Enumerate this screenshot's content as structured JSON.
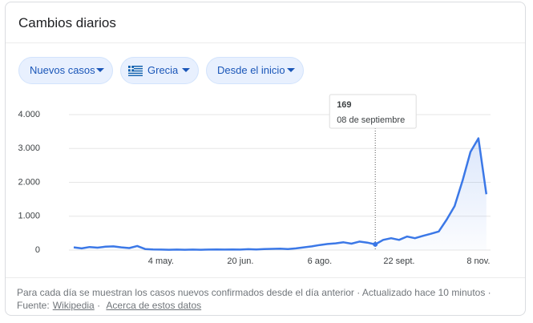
{
  "header": {
    "title": "Cambios diarios"
  },
  "filters": [
    "Nuevos casos",
    "Grecia",
    "Desde el inicio"
  ],
  "chart_data": {
    "type": "line",
    "categories": [
      null,
      null,
      null,
      null,
      null,
      null,
      null,
      null,
      null,
      null,
      null,
      "4 may.",
      null,
      null,
      null,
      null,
      null,
      null,
      null,
      null,
      null,
      "20 jun.",
      null,
      null,
      null,
      null,
      null,
      null,
      null,
      null,
      null,
      "6 ago.",
      null,
      null,
      null,
      null,
      null,
      null,
      null,
      null,
      null,
      "22 sept.",
      null,
      null,
      null,
      null,
      null,
      null,
      null,
      null,
      null,
      "8 nov.",
      null
    ],
    "series": [
      {
        "name": "Nuevos casos",
        "color": "#3b78e7",
        "values": [
          80,
          50,
          90,
          70,
          100,
          110,
          80,
          60,
          120,
          30,
          20,
          15,
          10,
          15,
          10,
          15,
          10,
          15,
          20,
          15,
          20,
          15,
          25,
          20,
          30,
          35,
          40,
          30,
          50,
          80,
          110,
          150,
          180,
          200,
          230,
          190,
          250,
          220,
          169,
          300,
          350,
          300,
          400,
          350,
          420,
          480,
          550,
          900,
          1300,
          2050,
          2900,
          3300,
          1650
        ]
      }
    ],
    "ylim": [
      0,
      4000
    ],
    "yticks": [
      0,
      {
        "value": 1000,
        "label": "1.000"
      },
      {
        "value": 2000,
        "label": "2.000"
      },
      {
        "value": 3000,
        "label": "3.000"
      },
      {
        "value": 4000,
        "label": "4.000"
      }
    ],
    "grid": true,
    "tooltip": {
      "value": 169,
      "label": "08 de septiembre"
    }
  },
  "footer": {
    "note": "Para cada día se muestran los casos nuevos confirmados desde el día anterior · Actualizado hace 10 minutos ·",
    "source_label": "Fuente:",
    "source_link": "Wikipedia",
    "about": "Acerca de estos datos"
  }
}
